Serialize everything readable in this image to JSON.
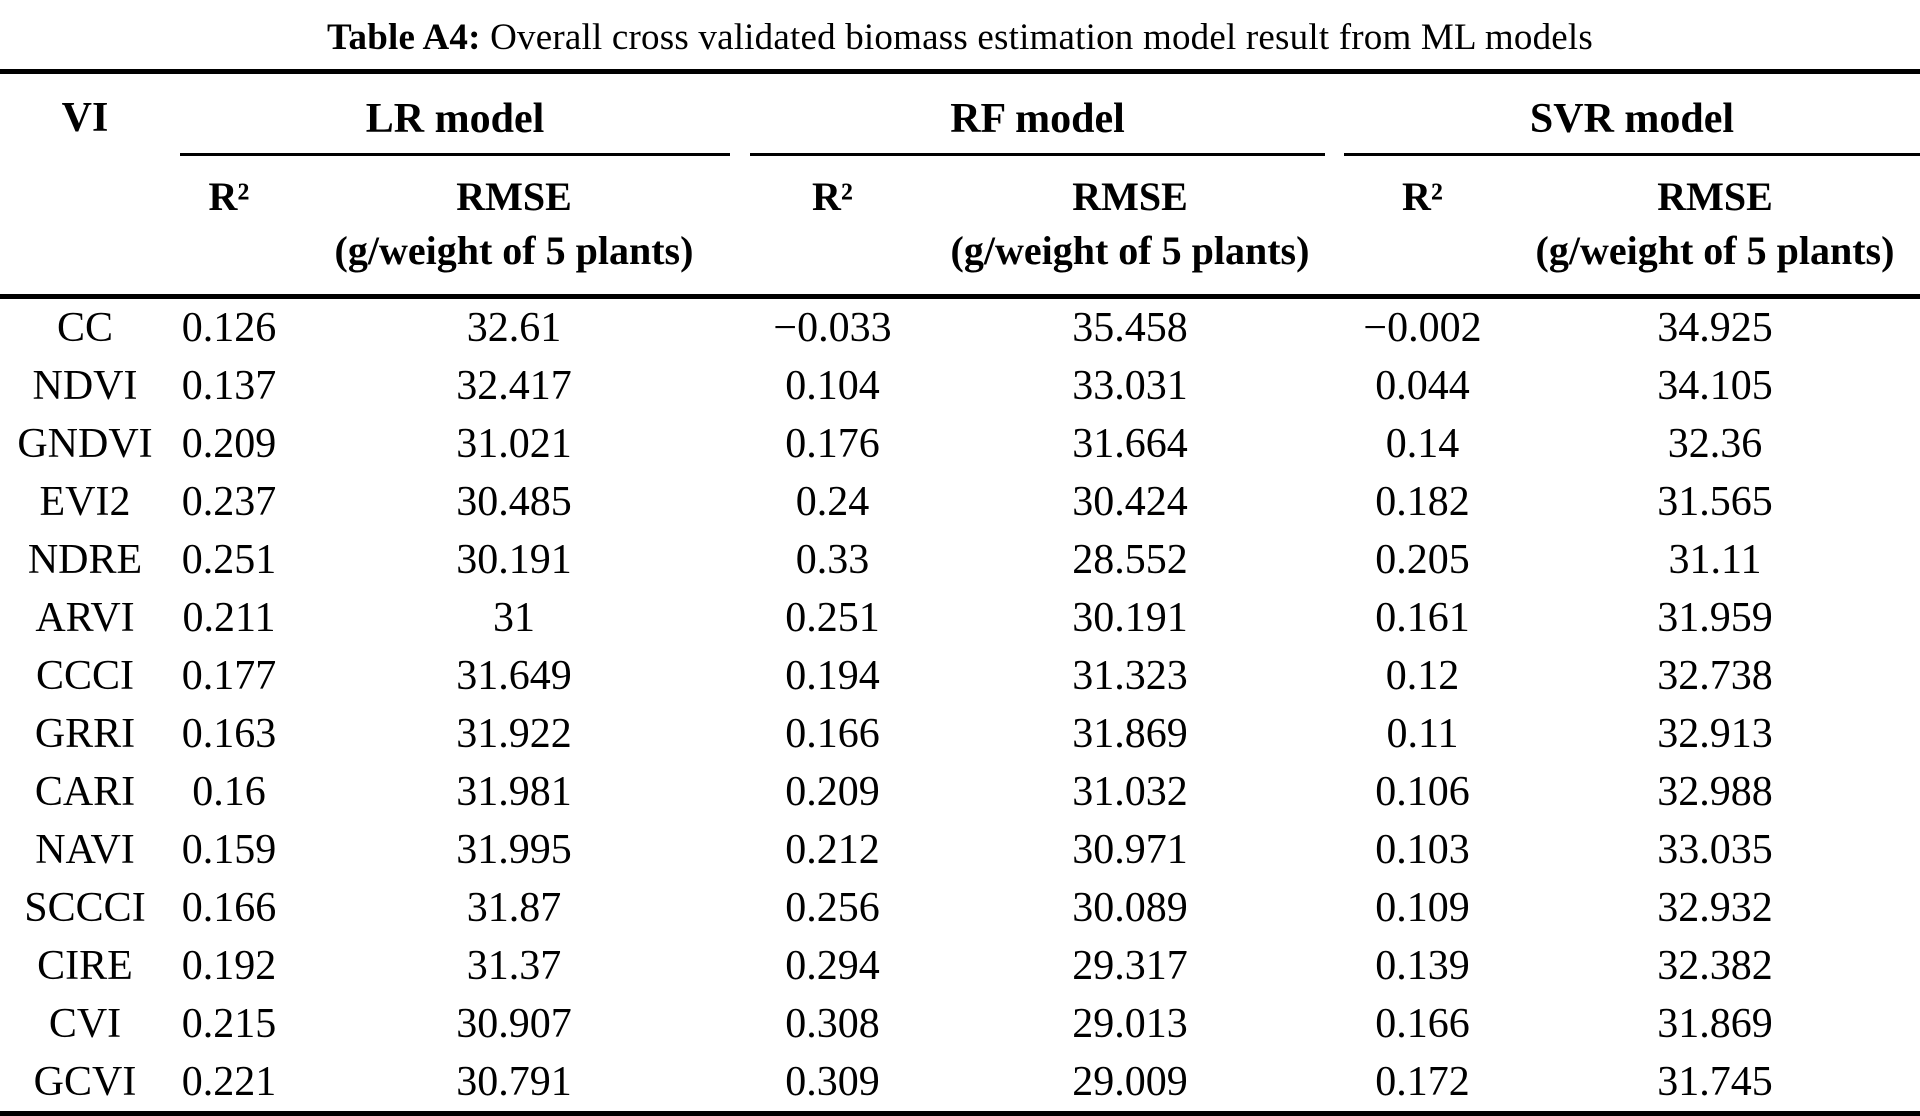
{
  "colors": {
    "background": "#ffffff",
    "text": "#000000",
    "rule": "#000000"
  },
  "caption": {
    "label": "Table A4:",
    "text": "Overall cross validated biomass estimation model result from ML models"
  },
  "table": {
    "col_vi_header": "VI",
    "groups": [
      {
        "label": "LR model"
      },
      {
        "label": "RF model"
      },
      {
        "label": "SVR model"
      }
    ],
    "subheaders": {
      "r2": "R²",
      "rmse": "RMSE",
      "rmse_unit": "(g/weight of 5 plants)"
    },
    "rows": [
      {
        "vi": "CC",
        "values": [
          "0.126",
          "32.61",
          "−0.033",
          "35.458",
          "−0.002",
          "34.925"
        ]
      },
      {
        "vi": "NDVI",
        "values": [
          "0.137",
          "32.417",
          "0.104",
          "33.031",
          "0.044",
          "34.105"
        ]
      },
      {
        "vi": "GNDVI",
        "values": [
          "0.209",
          "31.021",
          "0.176",
          "31.664",
          "0.14",
          "32.36"
        ]
      },
      {
        "vi": "EVI2",
        "values": [
          "0.237",
          "30.485",
          "0.24",
          "30.424",
          "0.182",
          "31.565"
        ]
      },
      {
        "vi": "NDRE",
        "values": [
          "0.251",
          "30.191",
          "0.33",
          "28.552",
          "0.205",
          "31.11"
        ]
      },
      {
        "vi": "ARVI",
        "values": [
          "0.211",
          "31",
          "0.251",
          "30.191",
          "0.161",
          "31.959"
        ]
      },
      {
        "vi": "CCCI",
        "values": [
          "0.177",
          "31.649",
          "0.194",
          "31.323",
          "0.12",
          "32.738"
        ]
      },
      {
        "vi": "GRRI",
        "values": [
          "0.163",
          "31.922",
          "0.166",
          "31.869",
          "0.11",
          "32.913"
        ]
      },
      {
        "vi": "CARI",
        "values": [
          "0.16",
          "31.981",
          "0.209",
          "31.032",
          "0.106",
          "32.988"
        ]
      },
      {
        "vi": "NAVI",
        "values": [
          "0.159",
          "31.995",
          "0.212",
          "30.971",
          "0.103",
          "33.035"
        ]
      },
      {
        "vi": "SCCCI",
        "values": [
          "0.166",
          "31.87",
          "0.256",
          "30.089",
          "0.109",
          "32.932"
        ]
      },
      {
        "vi": "CIRE",
        "values": [
          "0.192",
          "31.37",
          "0.294",
          "29.317",
          "0.139",
          "32.382"
        ]
      },
      {
        "vi": "CVI",
        "values": [
          "0.215",
          "30.907",
          "0.308",
          "29.013",
          "0.166",
          "31.869"
        ]
      },
      {
        "vi": "GCVI",
        "values": [
          "0.221",
          "30.791",
          "0.309",
          "29.009",
          "0.172",
          "31.745"
        ]
      }
    ]
  }
}
